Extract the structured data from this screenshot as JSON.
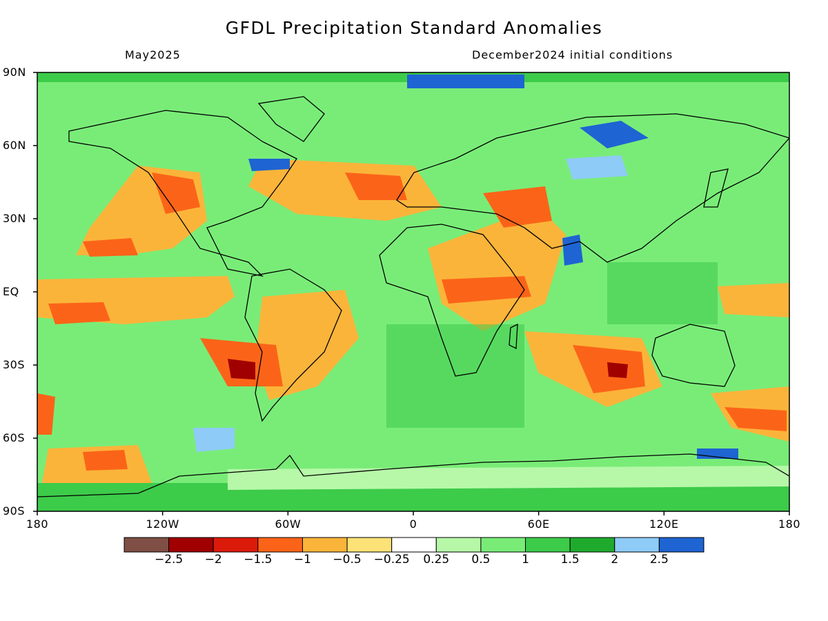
{
  "header": {
    "title": "GFDL Precipitation Standard Anomalies",
    "left_subtitle": "May2025",
    "right_subtitle": "December2024 initial conditions"
  },
  "axes": {
    "lat_labels": [
      "90N",
      "60N",
      "30N",
      "EQ",
      "30S",
      "60S",
      "90S"
    ],
    "lon_labels": [
      "180",
      "120W",
      "60W",
      "0",
      "60E",
      "120E",
      "180"
    ]
  },
  "colorbar": {
    "colors": [
      "#7f4f45",
      "#a00000",
      "#dc1a0a",
      "#fb6418",
      "#fbb43a",
      "#fde278",
      "#ffffff",
      "#b6f8a8",
      "#79ec78",
      "#3dcb4a",
      "#1faa2d",
      "#8ecbf7",
      "#1e64d2"
    ],
    "labels": [
      "−2.5",
      "−2",
      "−1.5",
      "−1",
      "−0.5",
      "−0.25",
      "0.25",
      "0.5",
      "1",
      "1.5",
      "2",
      "2.5"
    ]
  },
  "map_colors": {
    "base_green": "#79ec78",
    "coast": "#000000"
  }
}
